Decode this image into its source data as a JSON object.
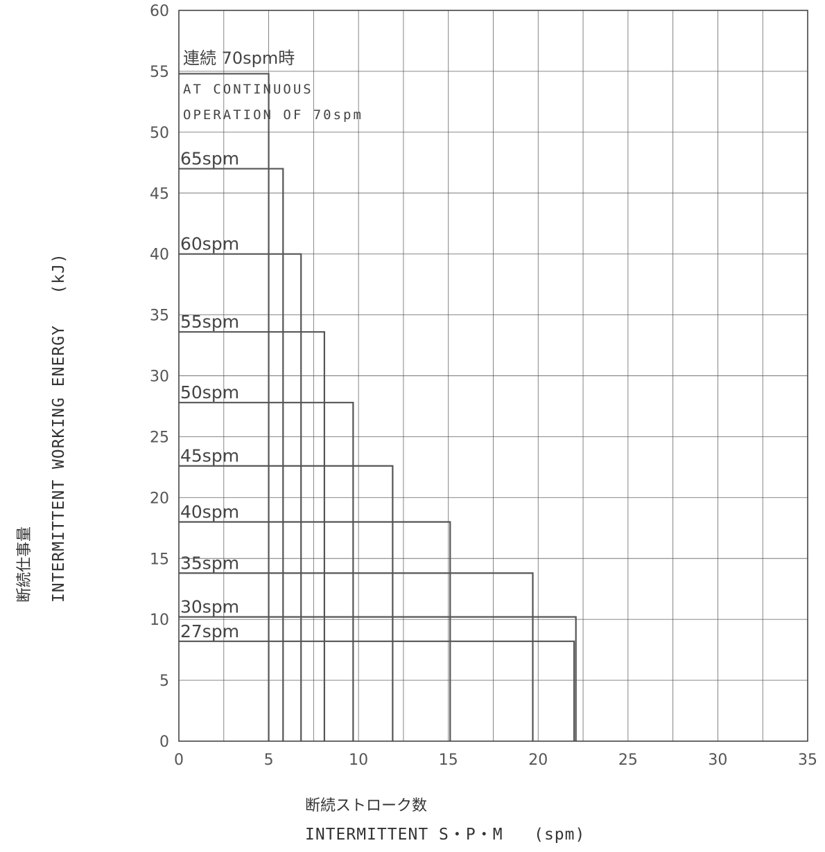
{
  "chart_data": {
    "type": "area",
    "title": "",
    "note": {
      "line1": "連続 70spm時",
      "line2": "AT CONTINUOUS",
      "line3": "OPERATION OF 70spm",
      "energy": 54.8,
      "max_intermittent_spm": 5.0
    },
    "x_axis": {
      "label_jp": "断続ストローク数",
      "label": "INTERMITTENT S・P・M   (spm)",
      "min": 0,
      "max": 35,
      "step": 5,
      "ticks": [
        "0",
        "5",
        "10",
        "15",
        "20",
        "25",
        "30",
        "35"
      ]
    },
    "y_axis": {
      "label_jp": "断続仕事量",
      "label": "INTERMITTENT WORKING ENERGY   (kJ)",
      "min": 0,
      "max": 60,
      "step": 5,
      "ticks": [
        "0",
        "5",
        "10",
        "15",
        "20",
        "25",
        "30",
        "35",
        "40",
        "45",
        "50",
        "55",
        "60"
      ]
    },
    "grid": true,
    "series": [
      {
        "name": "65spm",
        "energy": 47.0,
        "max_intermittent_spm": 5.8
      },
      {
        "name": "60spm",
        "energy": 40.0,
        "max_intermittent_spm": 6.8
      },
      {
        "name": "55spm",
        "energy": 33.6,
        "max_intermittent_spm": 8.1
      },
      {
        "name": "50spm",
        "energy": 27.8,
        "max_intermittent_spm": 9.7
      },
      {
        "name": "45spm",
        "energy": 22.6,
        "max_intermittent_spm": 11.9
      },
      {
        "name": "40spm",
        "energy": 18.0,
        "max_intermittent_spm": 15.1
      },
      {
        "name": "35spm",
        "energy": 13.8,
        "max_intermittent_spm": 19.7
      },
      {
        "name": "30spm",
        "energy": 10.2,
        "max_intermittent_spm": 22.1
      },
      {
        "name": "27spm",
        "energy": 8.2,
        "max_intermittent_spm": 22.0
      }
    ],
    "colors": {
      "grid": "#555555",
      "frame": "#444444",
      "series": "#555555"
    }
  }
}
